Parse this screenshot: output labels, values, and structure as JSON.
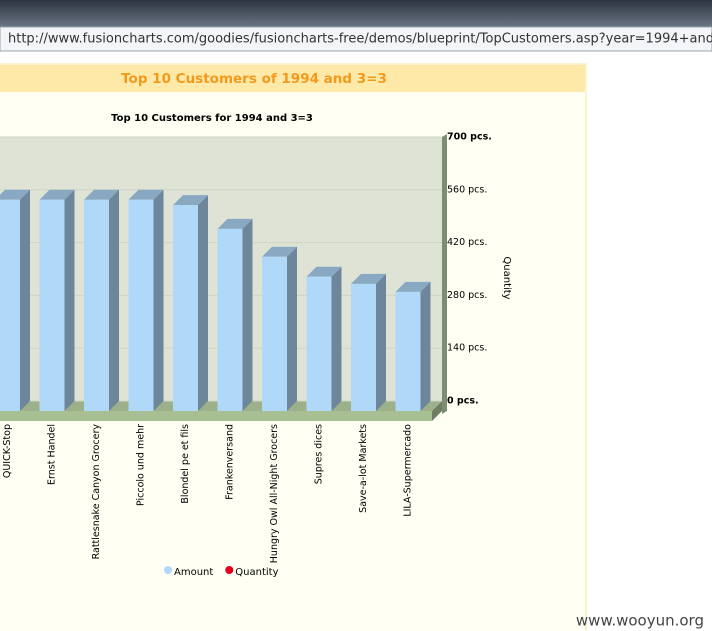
{
  "browser": {
    "url": "http://www.fusioncharts.com/goodies/fusioncharts-free/demos/blueprint/TopCustomers.asp?year=1994+and+3=3"
  },
  "header": {
    "title": "Top 10 Customers of 1994 and 3=3"
  },
  "watermark": "www.wooyun.org",
  "chart_data": {
    "type": "bar3d",
    "title": "Top 10 Customers for 1994 and 3=3",
    "y_label": "Quantity",
    "categories": [
      "QUICK-Stop",
      "Ernst Handel",
      "Rattlesnake Canyon Grocery",
      "Piccolo und mehr",
      "Blondel pe et fils",
      "Frankenversand",
      "Hungry Owl All-Night Grocers",
      "Supres dices",
      "Save-a-lot Markets",
      "LILA-Supermercado"
    ],
    "series": [
      {
        "name": "Amount",
        "color": "#b0d8f8",
        "values": [
          560,
          560,
          560,
          560,
          546,
          483,
          409,
          356,
          337,
          316
        ]
      },
      {
        "name": "Quantity",
        "color": "#e0001b",
        "values": [
          null,
          null,
          null,
          null,
          null,
          null,
          null,
          null,
          null,
          null
        ]
      }
    ],
    "ylim": [
      0,
      700
    ],
    "yticks": [
      {
        "value": 0,
        "label": "0 pcs."
      },
      {
        "value": 140,
        "label": "140 pcs."
      },
      {
        "value": 280,
        "label": "280 pcs."
      },
      {
        "value": 420,
        "label": "420 pcs."
      },
      {
        "value": 560,
        "label": "560 pcs."
      },
      {
        "value": 700,
        "label": "700 pcs."
      }
    ],
    "grid": true
  }
}
